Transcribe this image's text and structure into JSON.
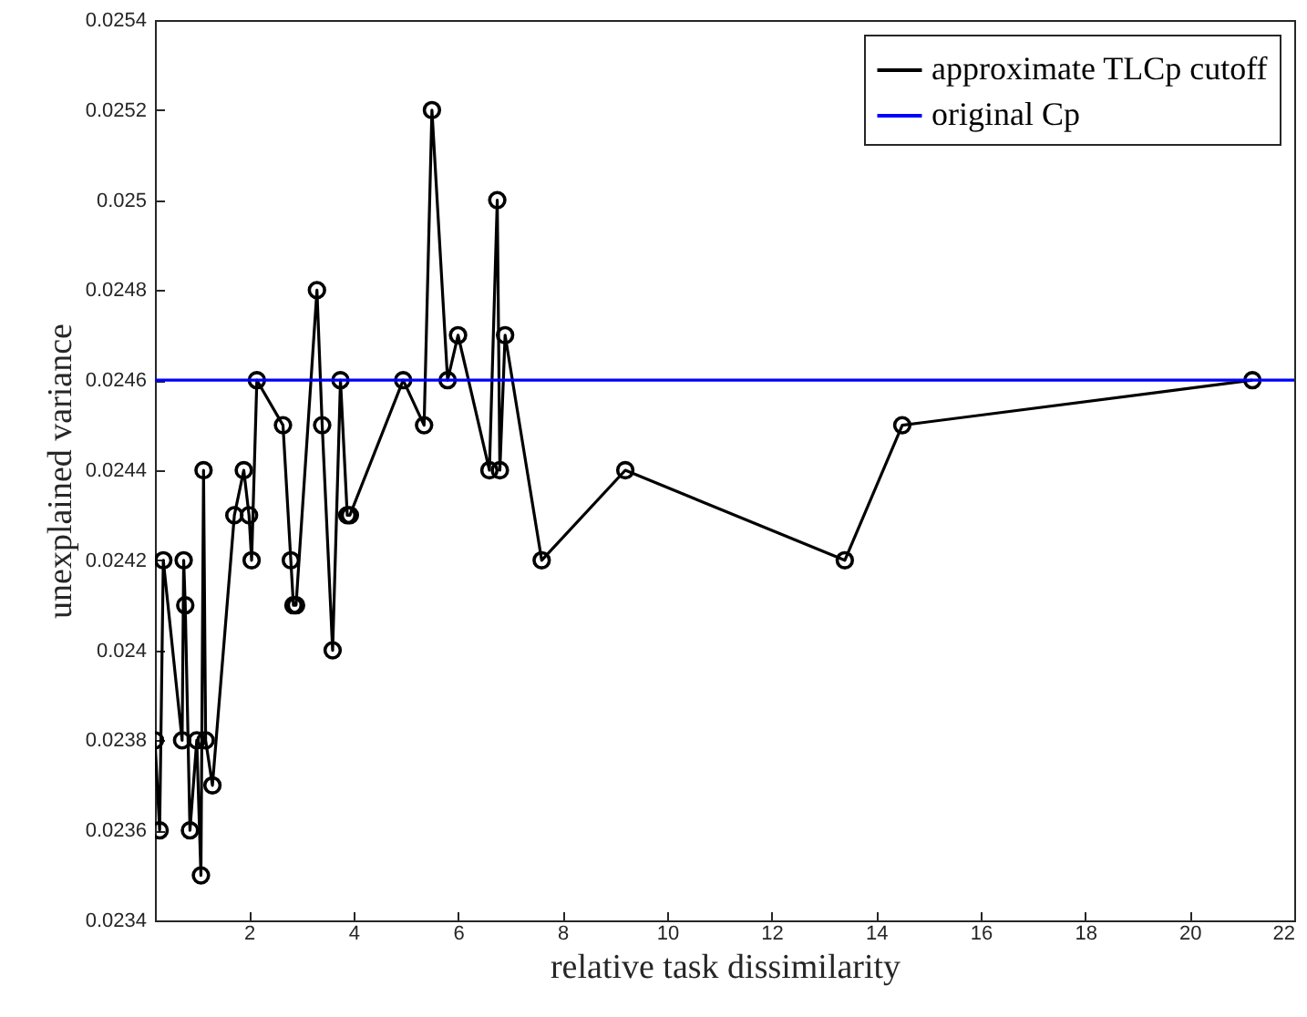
{
  "chart_data": {
    "type": "line",
    "xlabel": "relative task dissimilarity",
    "ylabel": "unexplained variance",
    "xlim": [
      0.2,
      22
    ],
    "xticks": [
      2,
      4,
      6,
      8,
      10,
      12,
      14,
      16,
      18,
      20,
      22
    ],
    "ylim": [
      0.0234,
      0.0254
    ],
    "yticks": [
      0.0234,
      0.0236,
      0.0238,
      0.024,
      0.0242,
      0.0244,
      0.0246,
      0.0248,
      0.025,
      0.0252,
      0.0254
    ],
    "grid": false,
    "legend": "top right",
    "series": [
      {
        "name": "approximate TLCp cutoff",
        "color": "#000000",
        "marker": "circle",
        "x": [
          0.2,
          0.29,
          0.36,
          0.72,
          0.75,
          0.78,
          0.87,
          1.0,
          1.08,
          1.13,
          1.17,
          1.3,
          1.72,
          1.9,
          2.0,
          2.05,
          2.15,
          2.65,
          2.8,
          2.85,
          2.9,
          3.3,
          3.4,
          3.6,
          3.75,
          3.88,
          3.93,
          4.95,
          5.35,
          5.5,
          5.8,
          6.0,
          6.6,
          6.75,
          6.8,
          6.9,
          7.6,
          9.2,
          13.4,
          14.5,
          21.2
        ],
        "values": [
          0.0238,
          0.0236,
          0.0242,
          0.0238,
          0.0242,
          0.0241,
          0.0236,
          0.0238,
          0.0235,
          0.0244,
          0.0238,
          0.0237,
          0.0243,
          0.0244,
          0.0243,
          0.0242,
          0.0246,
          0.0245,
          0.0242,
          0.0241,
          0.0241,
          0.0248,
          0.0245,
          0.024,
          0.0246,
          0.0243,
          0.0243,
          0.0246,
          0.0245,
          0.0252,
          0.0246,
          0.0247,
          0.0244,
          0.025,
          0.0244,
          0.0247,
          0.0242,
          0.0244,
          0.0242,
          0.0245,
          0.0246
        ]
      },
      {
        "name": "original Cp",
        "color": "#0000ff",
        "marker": "none",
        "x": [
          0.2,
          22
        ],
        "values": [
          0.0246,
          0.0246
        ]
      }
    ]
  }
}
